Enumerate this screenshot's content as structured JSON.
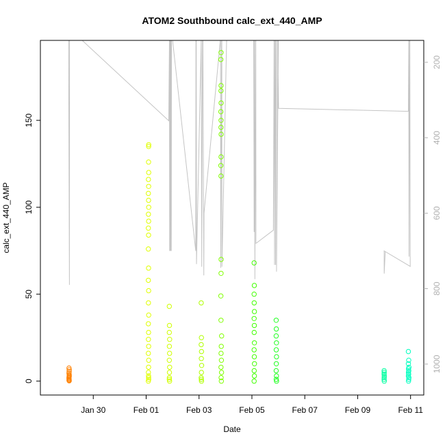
{
  "chart_data": {
    "type": "scatter",
    "title": "ATOM2 Southbound calc_ext_440_AMP",
    "xlabel": "Date",
    "ylabel": "calc_ext_440_AMP",
    "x_axis": {
      "type": "date",
      "range": [
        "2018-01-28T00:00",
        "2018-02-11T12:00"
      ],
      "ticks": [
        {
          "value": "2018-01-30",
          "label": "Jan 30"
        },
        {
          "value": "2018-02-01",
          "label": "Feb 01"
        },
        {
          "value": "2018-02-03",
          "label": "Feb 03"
        },
        {
          "value": "2018-02-05",
          "label": "Feb 05"
        },
        {
          "value": "2018-02-07",
          "label": "Feb 07"
        },
        {
          "value": "2018-02-09",
          "label": "Feb 09"
        },
        {
          "value": "2018-02-11",
          "label": "Feb 11"
        }
      ]
    },
    "y_axis": {
      "range": [
        -8,
        196
      ],
      "ticks": [
        0,
        50,
        100,
        150
      ]
    },
    "y2_axis": {
      "reversed": true,
      "range": [
        1082,
        142
      ],
      "ticks": [
        200,
        400,
        600,
        800,
        1000
      ],
      "color": "#b0b0b0"
    },
    "grid": false,
    "legend": "none",
    "series": [
      {
        "color": "#ff8000",
        "points": [
          [
            "2018-01-29T02:00",
            0.5
          ],
          [
            "2018-01-29T02:00",
            1.5
          ],
          [
            "2018-01-29T02:05",
            2.5
          ],
          [
            "2018-01-29T02:10",
            3.5
          ],
          [
            "2018-01-29T02:00",
            4.5
          ],
          [
            "2018-01-29T02:05",
            5.5
          ],
          [
            "2018-01-29T02:10",
            6.5
          ],
          [
            "2018-01-29T02:00",
            7.5
          ],
          [
            "2018-01-29T02:10",
            0.2
          ],
          [
            "2018-01-29T02:05",
            1.0
          ],
          [
            "2018-01-29T02:00",
            2.0
          ],
          [
            "2018-01-29T02:10",
            3.0
          ]
        ]
      },
      {
        "color": "#e0ff00",
        "points": [
          [
            "2018-02-01T02:00",
            76
          ],
          [
            "2018-02-01T02:10",
            84
          ],
          [
            "2018-02-01T02:00",
            88
          ],
          [
            "2018-02-01T02:15",
            92
          ],
          [
            "2018-02-01T02:05",
            96
          ],
          [
            "2018-02-01T02:20",
            100
          ],
          [
            "2018-02-01T02:10",
            104
          ],
          [
            "2018-02-01T02:00",
            108
          ],
          [
            "2018-02-01T02:15",
            112
          ],
          [
            "2018-02-01T02:05",
            116
          ],
          [
            "2018-02-01T02:20",
            120
          ],
          [
            "2018-02-01T02:10",
            126
          ],
          [
            "2018-02-01T02:15",
            135
          ],
          [
            "2018-02-01T02:20",
            136
          ],
          [
            "2018-02-01T02:10",
            65
          ],
          [
            "2018-02-01T02:00",
            58
          ],
          [
            "2018-02-01T02:15",
            52
          ],
          [
            "2018-02-01T02:05",
            45
          ],
          [
            "2018-02-01T02:20",
            38
          ],
          [
            "2018-02-01T02:00",
            33
          ],
          [
            "2018-02-01T02:10",
            28
          ],
          [
            "2018-02-01T02:05",
            24
          ],
          [
            "2018-02-01T02:15",
            20
          ],
          [
            "2018-02-01T02:00",
            16
          ],
          [
            "2018-02-01T02:20",
            12
          ],
          [
            "2018-02-01T02:10",
            8
          ],
          [
            "2018-02-01T02:05",
            5
          ],
          [
            "2018-02-01T02:15",
            2
          ],
          [
            "2018-02-01T02:00",
            0
          ],
          [
            "2018-02-01T02:20",
            1
          ],
          [
            "2018-02-01T02:10",
            3
          ]
        ]
      },
      {
        "color": "#d0ff00",
        "points": [
          [
            "2018-02-01T21:00",
            43
          ],
          [
            "2018-02-01T21:10",
            32
          ],
          [
            "2018-02-01T21:00",
            28
          ],
          [
            "2018-02-01T21:20",
            24
          ],
          [
            "2018-02-01T21:05",
            20
          ],
          [
            "2018-02-01T21:15",
            16
          ],
          [
            "2018-02-01T21:00",
            12
          ],
          [
            "2018-02-01T21:20",
            8
          ],
          [
            "2018-02-01T21:10",
            5
          ],
          [
            "2018-02-01T21:05",
            2
          ],
          [
            "2018-02-01T21:15",
            0
          ],
          [
            "2018-02-01T21:00",
            1
          ]
        ]
      },
      {
        "color": "#b0ff00",
        "points": [
          [
            "2018-02-03T02:00",
            45
          ],
          [
            "2018-02-03T02:10",
            25
          ],
          [
            "2018-02-03T02:00",
            21
          ],
          [
            "2018-02-03T02:15",
            17
          ],
          [
            "2018-02-03T02:05",
            13
          ],
          [
            "2018-02-03T02:20",
            9
          ],
          [
            "2018-02-03T02:10",
            5
          ],
          [
            "2018-02-03T02:00",
            2
          ],
          [
            "2018-02-03T02:15",
            0
          ],
          [
            "2018-02-03T02:05",
            1
          ]
        ]
      },
      {
        "color": "#80ff00",
        "points": [
          [
            "2018-02-03T20:00",
            189
          ],
          [
            "2018-02-03T19:50",
            185
          ],
          [
            "2018-02-03T20:00",
            170
          ],
          [
            "2018-02-03T19:55",
            167
          ],
          [
            "2018-02-03T20:05",
            160
          ],
          [
            "2018-02-03T19:50",
            155
          ],
          [
            "2018-02-03T20:00",
            150
          ],
          [
            "2018-02-03T19:55",
            146
          ],
          [
            "2018-02-03T20:05",
            142
          ],
          [
            "2018-02-03T20:00",
            129
          ],
          [
            "2018-02-03T19:50",
            124
          ],
          [
            "2018-02-03T19:55",
            118
          ],
          [
            "2018-02-03T20:05",
            70
          ],
          [
            "2018-02-03T20:00",
            62
          ],
          [
            "2018-02-03T19:50",
            49
          ],
          [
            "2018-02-03T19:55",
            35
          ],
          [
            "2018-02-03T20:30",
            26
          ],
          [
            "2018-02-03T20:10",
            20
          ],
          [
            "2018-02-03T20:00",
            16
          ],
          [
            "2018-02-03T20:20",
            12
          ],
          [
            "2018-02-03T19:55",
            8
          ],
          [
            "2018-02-03T20:25",
            5
          ],
          [
            "2018-02-03T20:05",
            2
          ],
          [
            "2018-02-03T20:15",
            0
          ]
        ]
      },
      {
        "color": "#40ff00",
        "points": [
          [
            "2018-02-05T02:00",
            68
          ],
          [
            "2018-02-05T02:10",
            55
          ],
          [
            "2018-02-05T02:00",
            50
          ],
          [
            "2018-02-05T02:05",
            45
          ],
          [
            "2018-02-05T02:15",
            40
          ],
          [
            "2018-02-05T02:00",
            36
          ],
          [
            "2018-02-05T02:10",
            32
          ],
          [
            "2018-02-05T02:05",
            28
          ],
          [
            "2018-02-05T02:15",
            22
          ],
          [
            "2018-02-05T02:00",
            18
          ],
          [
            "2018-02-05T02:10",
            14
          ],
          [
            "2018-02-05T02:20",
            10
          ],
          [
            "2018-02-05T02:05",
            6
          ],
          [
            "2018-02-05T02:15",
            3
          ],
          [
            "2018-02-05T02:00",
            0
          ]
        ]
      },
      {
        "color": "#20ff20",
        "points": [
          [
            "2018-02-05T22:00",
            35
          ],
          [
            "2018-02-05T22:10",
            30
          ],
          [
            "2018-02-05T22:00",
            26
          ],
          [
            "2018-02-05T22:15",
            22
          ],
          [
            "2018-02-05T22:05",
            18
          ],
          [
            "2018-02-05T22:20",
            14
          ],
          [
            "2018-02-05T22:10",
            10
          ],
          [
            "2018-02-05T22:00",
            6
          ],
          [
            "2018-02-05T22:15",
            3
          ],
          [
            "2018-02-05T22:05",
            1
          ],
          [
            "2018-02-05T22:20",
            0
          ]
        ]
      },
      {
        "color": "#00ffa0",
        "points": [
          [
            "2018-02-10T00:00",
            6
          ],
          [
            "2018-02-10T00:05",
            5
          ],
          [
            "2018-02-10T00:00",
            4
          ],
          [
            "2018-02-10T00:10",
            3
          ],
          [
            "2018-02-10T00:05",
            2
          ],
          [
            "2018-02-10T00:00",
            1
          ],
          [
            "2018-02-10T00:10",
            0
          ]
        ]
      },
      {
        "color": "#00ffc0",
        "points": [
          [
            "2018-02-10T22:00",
            17
          ],
          [
            "2018-02-10T22:20",
            12
          ],
          [
            "2018-02-10T22:00",
            10
          ],
          [
            "2018-02-10T22:30",
            8
          ],
          [
            "2018-02-10T22:10",
            7
          ],
          [
            "2018-02-10T22:25",
            6
          ],
          [
            "2018-02-10T22:05",
            5
          ],
          [
            "2018-02-10T22:15",
            4
          ],
          [
            "2018-02-10T22:00",
            3
          ],
          [
            "2018-02-10T22:30",
            2
          ],
          [
            "2018-02-10T22:20",
            1
          ],
          [
            "2018-02-10T22:10",
            0
          ]
        ]
      }
    ],
    "depth_trace": {
      "axis": "y2",
      "color": "#c4c4c4",
      "points": [
        [
          "2018-01-29T01:40",
          142
        ],
        [
          "2018-01-29T01:45",
          230
        ],
        [
          "2018-01-29T02:20",
          790
        ],
        [
          "2018-01-29T02:30",
          142
        ],
        [
          "2018-01-29T14:00",
          142
        ],
        [
          "2018-02-01T20:30",
          355
        ],
        [
          "2018-02-01T21:10",
          142
        ],
        [
          "2018-02-01T21:20",
          700
        ],
        [
          "2018-02-01T21:40",
          142
        ],
        [
          "2018-02-01T21:50",
          700
        ],
        [
          "2018-02-01T22:05",
          142
        ],
        [
          "2018-02-01T22:20",
          142
        ],
        [
          "2018-02-01T22:30",
          700
        ],
        [
          "2018-02-01T22:40",
          142
        ],
        [
          "2018-02-01T22:50",
          700
        ],
        [
          "2018-02-01T23:00",
          142
        ],
        [
          "2018-02-02T00:00",
          142
        ],
        [
          "2018-02-02T21:00",
          700
        ],
        [
          "2018-02-02T21:10",
          142
        ],
        [
          "2018-02-02T21:30",
          142
        ],
        [
          "2018-02-02T21:40",
          735
        ],
        [
          "2018-02-03T02:00",
          142
        ],
        [
          "2018-02-03T02:30",
          742
        ],
        [
          "2018-02-03T03:10",
          142
        ],
        [
          "2018-02-03T03:30",
          142
        ],
        [
          "2018-02-03T04:20",
          765
        ],
        [
          "2018-02-03T04:30",
          600
        ],
        [
          "2018-02-03T19:20",
          142
        ],
        [
          "2018-02-03T19:30",
          142
        ],
        [
          "2018-02-03T19:40",
          745
        ],
        [
          "2018-02-03T20:30",
          142
        ],
        [
          "2018-02-03T20:40",
          142
        ],
        [
          "2018-02-03T20:50",
          742
        ],
        [
          "2018-02-04T01:00",
          142
        ],
        [
          "2018-02-04T01:20",
          142
        ],
        [
          "2018-02-05T01:30",
          142
        ],
        [
          "2018-02-05T01:40",
          142
        ],
        [
          "2018-02-05T02:00",
          650
        ],
        [
          "2018-02-05T02:20",
          142
        ],
        [
          "2018-02-05T02:30",
          142
        ],
        [
          "2018-02-05T02:40",
          775
        ],
        [
          "2018-02-05T03:30",
          142
        ],
        [
          "2018-02-05T03:40",
          680
        ],
        [
          "2018-02-05T19:30",
          645
        ],
        [
          "2018-02-05T20:10",
          142
        ],
        [
          "2018-02-05T20:20",
          142
        ],
        [
          "2018-02-05T20:30",
          737
        ],
        [
          "2018-02-05T21:10",
          142
        ],
        [
          "2018-02-05T21:20",
          142
        ],
        [
          "2018-02-05T21:30",
          737
        ],
        [
          "2018-02-05T22:10",
          142
        ],
        [
          "2018-02-05T23:00",
          142
        ],
        [
          "2018-02-06T00:00",
          142
        ],
        [
          "2018-02-05T22:20",
          755
        ],
        [
          "2018-02-05T23:20",
          142
        ],
        [
          "2018-02-06T00:10",
          322
        ],
        [
          "2018-02-10T22:00",
          330
        ],
        [
          "2018-02-10T22:20",
          142
        ],
        [
          "2018-02-10T22:40",
          715
        ],
        [
          "2018-02-10T23:10",
          142
        ],
        [
          "2018-02-10T23:20",
          142
        ],
        [
          "2018-02-10T23:40",
          741
        ],
        [
          "2018-02-10T00:00",
          700
        ],
        [
          "2018-02-10T00:05",
          760
        ],
        [
          "2018-02-10T01:00",
          702
        ]
      ]
    }
  }
}
